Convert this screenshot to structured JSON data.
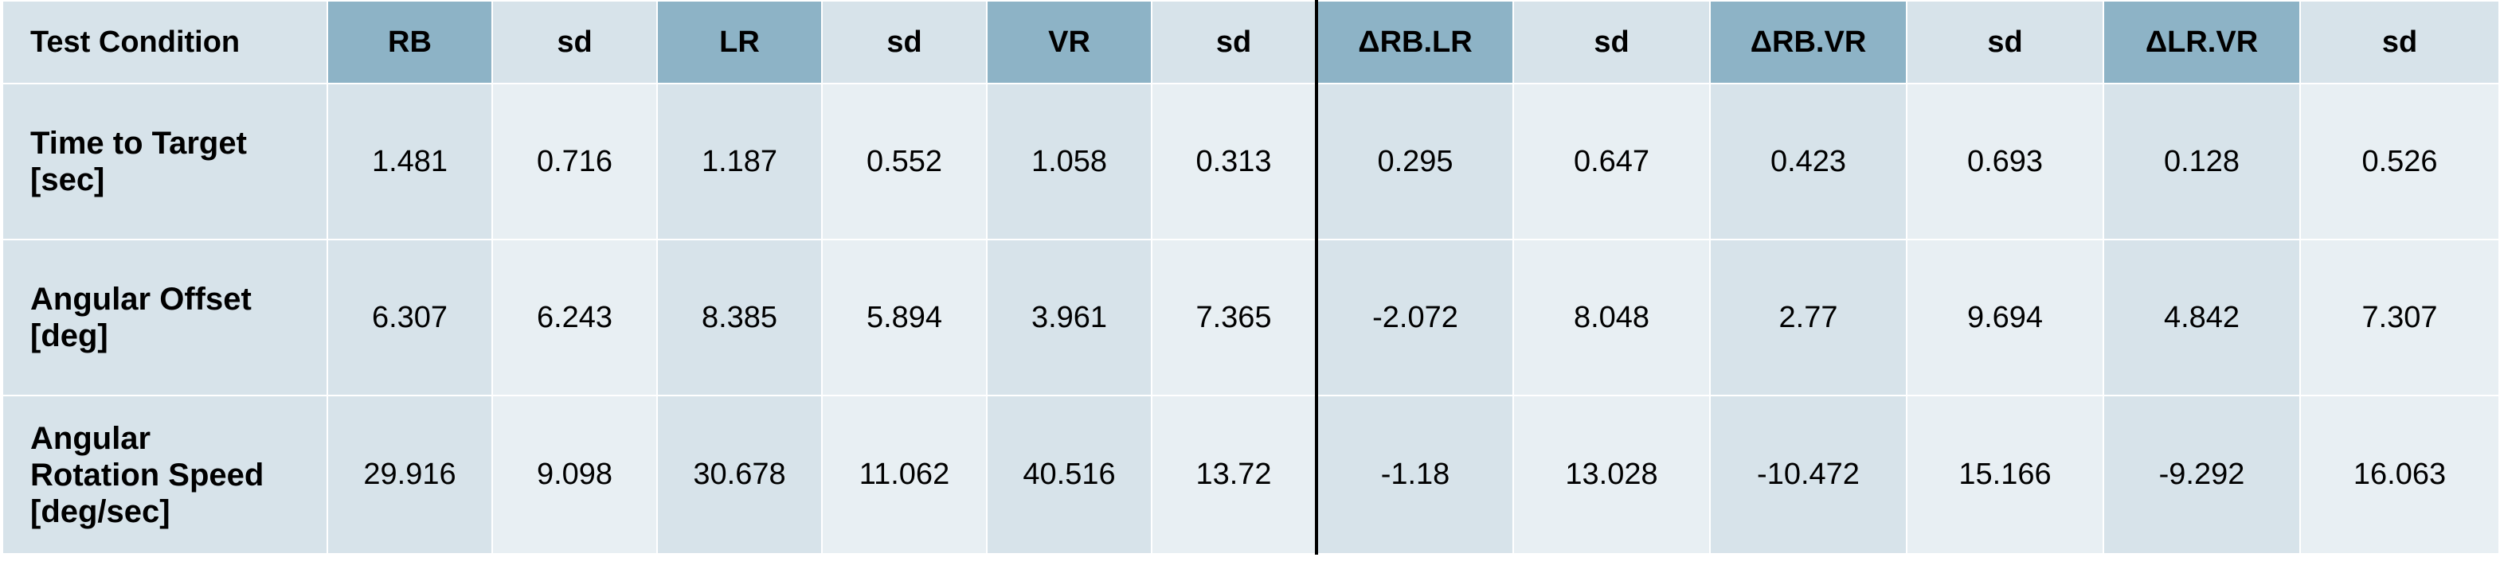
{
  "table": {
    "header": {
      "condition": "Test Condition",
      "columns": [
        "RB",
        "sd",
        "LR",
        "sd",
        "VR",
        "sd",
        "ΔRB.LR",
        "sd",
        "ΔRB.VR",
        "sd",
        "ΔLR.VR",
        "sd"
      ]
    },
    "rows": [
      {
        "line1": "Time to Target",
        "line2": "[sec]",
        "values": [
          "1.481",
          "0.716",
          "1.187",
          "0.552",
          "1.058",
          "0.313",
          "0.295",
          "0.647",
          "0.423",
          "0.693",
          "0.128",
          "0.526"
        ]
      },
      {
        "line1": "Angular Offset",
        "line2": "[deg]",
        "values": [
          "6.307",
          "6.243",
          "8.385",
          "5.894",
          "3.961",
          "7.365",
          "-2.072",
          "8.048",
          "2.77",
          "9.694",
          "4.842",
          "7.307"
        ]
      },
      {
        "line1": "Angular",
        "line2": "Rotation Speed",
        "line3": "[deg/sec]",
        "values": [
          "29.916",
          "9.098",
          "30.678",
          "11.062",
          "40.516",
          "13.72",
          "-1.18",
          "13.028",
          "-10.472",
          "15.166",
          "-9.292",
          "16.063"
        ]
      }
    ]
  }
}
